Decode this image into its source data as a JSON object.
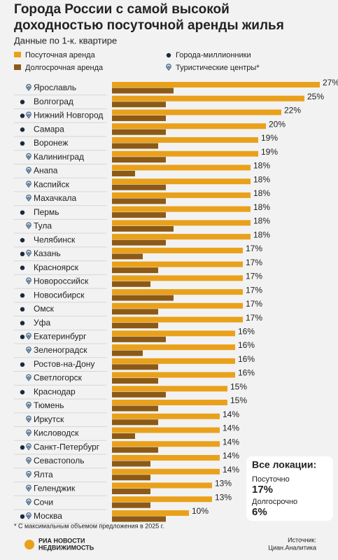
{
  "chart_data": {
    "type": "bar",
    "orientation": "horizontal",
    "title": "Города России с самой высокой доходностью посуточной аренды жилья",
    "subtitle": "Данные по 1-к. квартире",
    "categories": [
      "Ярославль",
      "Волгоград",
      "Нижний Новгород",
      "Самара",
      "Воронеж",
      "Калининград",
      "Анапа",
      "Каспийск",
      "Махачкала",
      "Пермь",
      "Тула",
      "Челябинск",
      "Казань",
      "Красноярск",
      "Новороссийск",
      "Новосибирск",
      "Омск",
      "Уфа",
      "Екатеринбург",
      "Зеленоградск",
      "Ростов-на-Дону",
      "Светлогорск",
      "Краснодар",
      "Тюмень",
      "Иркутск",
      "Кисловодск",
      "Санкт-Петербург",
      "Севастополь",
      "Ялта",
      "Геленджик",
      "Сочи",
      "Москва"
    ],
    "series": [
      {
        "name": "Посуточная аренда",
        "color": "#e9a11b",
        "values": [
          27,
          25,
          22,
          20,
          19,
          19,
          18,
          18,
          18,
          18,
          18,
          18,
          17,
          17,
          17,
          17,
          17,
          17,
          16,
          16,
          16,
          16,
          15,
          15,
          14,
          14,
          14,
          14,
          14,
          13,
          13,
          10
        ],
        "value_labels": [
          "27%",
          "25%",
          "22%",
          "20%",
          "19%",
          "19%",
          "18%",
          "18%",
          "18%",
          "18%",
          "18%",
          "18%",
          "17%",
          "17%",
          "17%",
          "17%",
          "17%",
          "17%",
          "16%",
          "16%",
          "16%",
          "16%",
          "15%",
          "15%",
          "14%",
          "14%",
          "14%",
          "14%",
          "14%",
          "13%",
          "13%",
          "10%"
        ]
      },
      {
        "name": "Долгосрочная аренда",
        "color": "#8c5a16",
        "values": [
          8,
          7,
          7,
          7,
          6,
          7,
          3,
          7,
          7,
          7,
          8,
          7,
          4,
          6,
          5,
          8,
          6,
          6,
          7,
          4,
          6,
          6,
          7,
          6,
          6,
          3,
          6,
          5,
          5,
          5,
          5,
          7
        ]
      }
    ],
    "markers": [
      {
        "name": "Города-миллионники",
        "color": "#1b2a3a",
        "shape": "dot",
        "flags": [
          false,
          true,
          true,
          true,
          true,
          false,
          false,
          false,
          false,
          true,
          false,
          true,
          true,
          true,
          false,
          true,
          true,
          true,
          true,
          false,
          true,
          false,
          true,
          false,
          false,
          false,
          true,
          false,
          false,
          false,
          false,
          true
        ]
      },
      {
        "name": "Туристические центры*",
        "color": "#4a6a8a",
        "shape": "pin",
        "flags": [
          true,
          false,
          true,
          false,
          false,
          true,
          true,
          true,
          true,
          false,
          true,
          false,
          true,
          false,
          true,
          false,
          false,
          false,
          true,
          true,
          false,
          true,
          false,
          true,
          true,
          true,
          true,
          true,
          true,
          true,
          true,
          true
        ]
      }
    ],
    "summary": {
      "title": "Все локации:",
      "items": [
        {
          "label": "Посуточно",
          "value": 17,
          "value_label": "17%"
        },
        {
          "label": "Долгосрочно",
          "value": 6,
          "value_label": "6%"
        }
      ]
    },
    "footnote": "* С максимальным объемом предложения в 2025 г.",
    "logo": [
      "РИА НОВОСТИ",
      "НЕДВИЖИМОСТЬ"
    ],
    "source": [
      "Источник:",
      "Циан.Аналитика"
    ]
  }
}
